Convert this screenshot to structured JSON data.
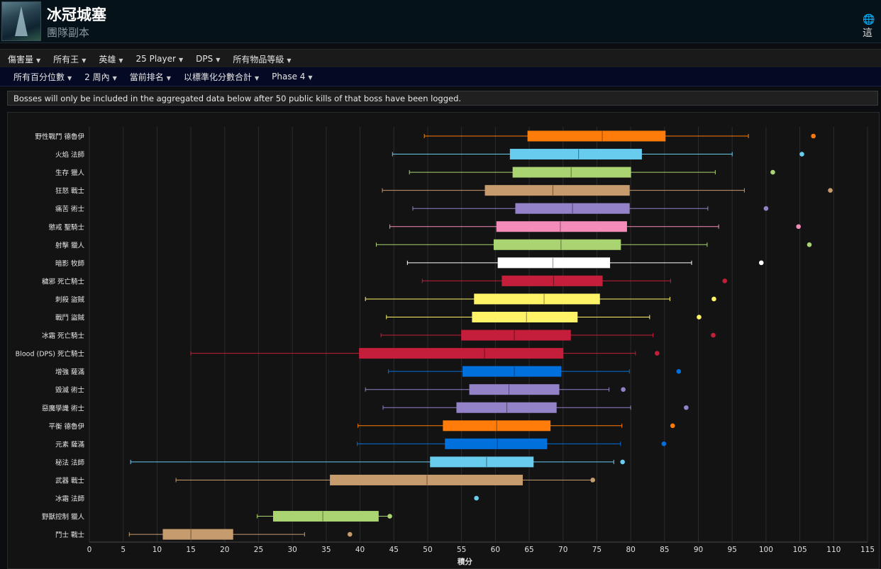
{
  "header": {
    "title": "冰冠城塞",
    "subtitle": "團隊副本",
    "globe_text": "🌐 ",
    "globe_label": "這"
  },
  "filters_row1": [
    {
      "label": "傷害量"
    },
    {
      "label": "所有王"
    },
    {
      "label": "英雄"
    },
    {
      "label": "25 Player"
    },
    {
      "label": "DPS"
    },
    {
      "label": "所有物品等級"
    }
  ],
  "filters_row2": [
    {
      "label": "所有百分位數"
    },
    {
      "label": "2 周內"
    },
    {
      "label": "當前排名"
    },
    {
      "label": "以標準化分數合計"
    },
    {
      "label": "Phase 4"
    }
  ],
  "notice": "Bosses will only be included in the aggregated data below after 50 public kills of that boss have been logged.",
  "chart_data": {
    "type": "boxplot",
    "orientation": "horizontal",
    "xlabel": "積分",
    "xlim": [
      0,
      115
    ],
    "xticks": [
      0,
      5,
      10,
      15,
      20,
      25,
      30,
      35,
      40,
      45,
      50,
      55,
      60,
      65,
      70,
      75,
      80,
      85,
      90,
      95,
      100,
      105,
      110,
      115
    ],
    "grid": true,
    "series": [
      {
        "name": "野性戰鬥 德魯伊",
        "color": "#ff7c0a",
        "min": 49.5,
        "q1": 64.8,
        "median": 75.8,
        "q3": 85.1,
        "max": 97.4,
        "outlier": 107.0
      },
      {
        "name": "火焰 法師",
        "color": "#68ccef",
        "min": 44.8,
        "q1": 62.2,
        "median": 72.3,
        "q3": 81.6,
        "max": 95.0,
        "outlier": 105.3
      },
      {
        "name": "生存 獵人",
        "color": "#aad372",
        "min": 47.3,
        "q1": 62.6,
        "median": 71.2,
        "q3": 80.0,
        "max": 92.5,
        "outlier": 101.0
      },
      {
        "name": "狂怒 戰士",
        "color": "#c69b6d",
        "min": 43.3,
        "q1": 58.5,
        "median": 68.5,
        "q3": 79.8,
        "max": 96.8,
        "outlier": 109.5
      },
      {
        "name": "痛苦 術士",
        "color": "#9482c9",
        "min": 47.8,
        "q1": 63.0,
        "median": 71.4,
        "q3": 79.8,
        "max": 91.4,
        "outlier": 100.0
      },
      {
        "name": "懲戒 聖騎士",
        "color": "#f48cba",
        "min": 44.4,
        "q1": 60.2,
        "median": 69.6,
        "q3": 79.4,
        "max": 93.0,
        "outlier": 104.8
      },
      {
        "name": "射擊 獵人",
        "color": "#aad372",
        "min": 42.4,
        "q1": 59.8,
        "median": 69.7,
        "q3": 78.5,
        "max": 91.3,
        "outlier": 106.4
      },
      {
        "name": "暗影 牧師",
        "color": "#ffffff",
        "min": 47.0,
        "q1": 60.4,
        "median": 68.5,
        "q3": 76.9,
        "max": 89.0,
        "outlier": 99.3
      },
      {
        "name": "穢邪 死亡騎士",
        "color": "#c41e3a",
        "min": 49.2,
        "q1": 61.0,
        "median": 68.6,
        "q3": 75.8,
        "max": 85.9,
        "outlier": 93.9
      },
      {
        "name": "刺殺 盜賊",
        "color": "#fff468",
        "min": 40.8,
        "q1": 56.9,
        "median": 67.2,
        "q3": 75.4,
        "max": 85.8,
        "outlier": 92.3
      },
      {
        "name": "戰鬥 盜賊",
        "color": "#fff468",
        "min": 43.9,
        "q1": 56.6,
        "median": 64.6,
        "q3": 72.1,
        "max": 82.8,
        "outlier": 90.1
      },
      {
        "name": "冰霜 死亡騎士",
        "color": "#c41e3a",
        "min": 43.1,
        "q1": 55.0,
        "median": 62.8,
        "q3": 71.1,
        "max": 83.3,
        "outlier": 92.2
      },
      {
        "name": "Blood (DPS) 死亡騎士",
        "color": "#c41e3a",
        "min": 15.0,
        "q1": 39.9,
        "median": 58.4,
        "q3": 70.0,
        "max": 80.7,
        "outlier": 83.9
      },
      {
        "name": "增強 薩滿",
        "color": "#0070dd",
        "min": 44.2,
        "q1": 55.2,
        "median": 62.8,
        "q3": 69.7,
        "max": 79.8,
        "outlier": 87.1
      },
      {
        "name": "毀滅 術士",
        "color": "#9482c9",
        "min": 40.8,
        "q1": 56.2,
        "median": 62.0,
        "q3": 69.4,
        "max": 76.8,
        "outlier": 78.9
      },
      {
        "name": "惡魔學識 術士",
        "color": "#9482c9",
        "min": 43.4,
        "q1": 54.3,
        "median": 61.7,
        "q3": 69.0,
        "max": 80.0,
        "outlier": 88.2
      },
      {
        "name": "平衡 德魯伊",
        "color": "#ff7c0a",
        "min": 39.7,
        "q1": 52.3,
        "median": 60.2,
        "q3": 68.1,
        "max": 78.7,
        "outlier": 86.2
      },
      {
        "name": "元素 薩滿",
        "color": "#0070dd",
        "min": 39.6,
        "q1": 52.6,
        "median": 60.3,
        "q3": 67.6,
        "max": 78.5,
        "outlier": 84.9
      },
      {
        "name": "秘法 法師",
        "color": "#68ccef",
        "min": 6.1,
        "q1": 50.4,
        "median": 58.7,
        "q3": 65.6,
        "max": 77.5,
        "outlier": 78.8
      },
      {
        "name": "武器 戰士",
        "color": "#c69b6d",
        "min": 12.8,
        "q1": 35.6,
        "median": 49.9,
        "q3": 64.0,
        "max": 74.2,
        "outlier": 74.4
      },
      {
        "name": "冰霜 法師",
        "color": "#68ccef",
        "min": 57.2,
        "q1": 57.2,
        "median": 57.2,
        "q3": 57.2,
        "max": 57.2,
        "outlier": 57.2
      },
      {
        "name": "野獸控制 獵人",
        "color": "#aad372",
        "min": 24.8,
        "q1": 27.2,
        "median": 34.5,
        "q3": 42.7,
        "max": 44.3,
        "outlier": 44.4
      },
      {
        "name": "鬥士 戰士",
        "color": "#c69b6d",
        "min": 5.9,
        "q1": 10.9,
        "median": 15.0,
        "q3": 21.2,
        "max": 31.8,
        "outlier": 38.5
      }
    ]
  }
}
